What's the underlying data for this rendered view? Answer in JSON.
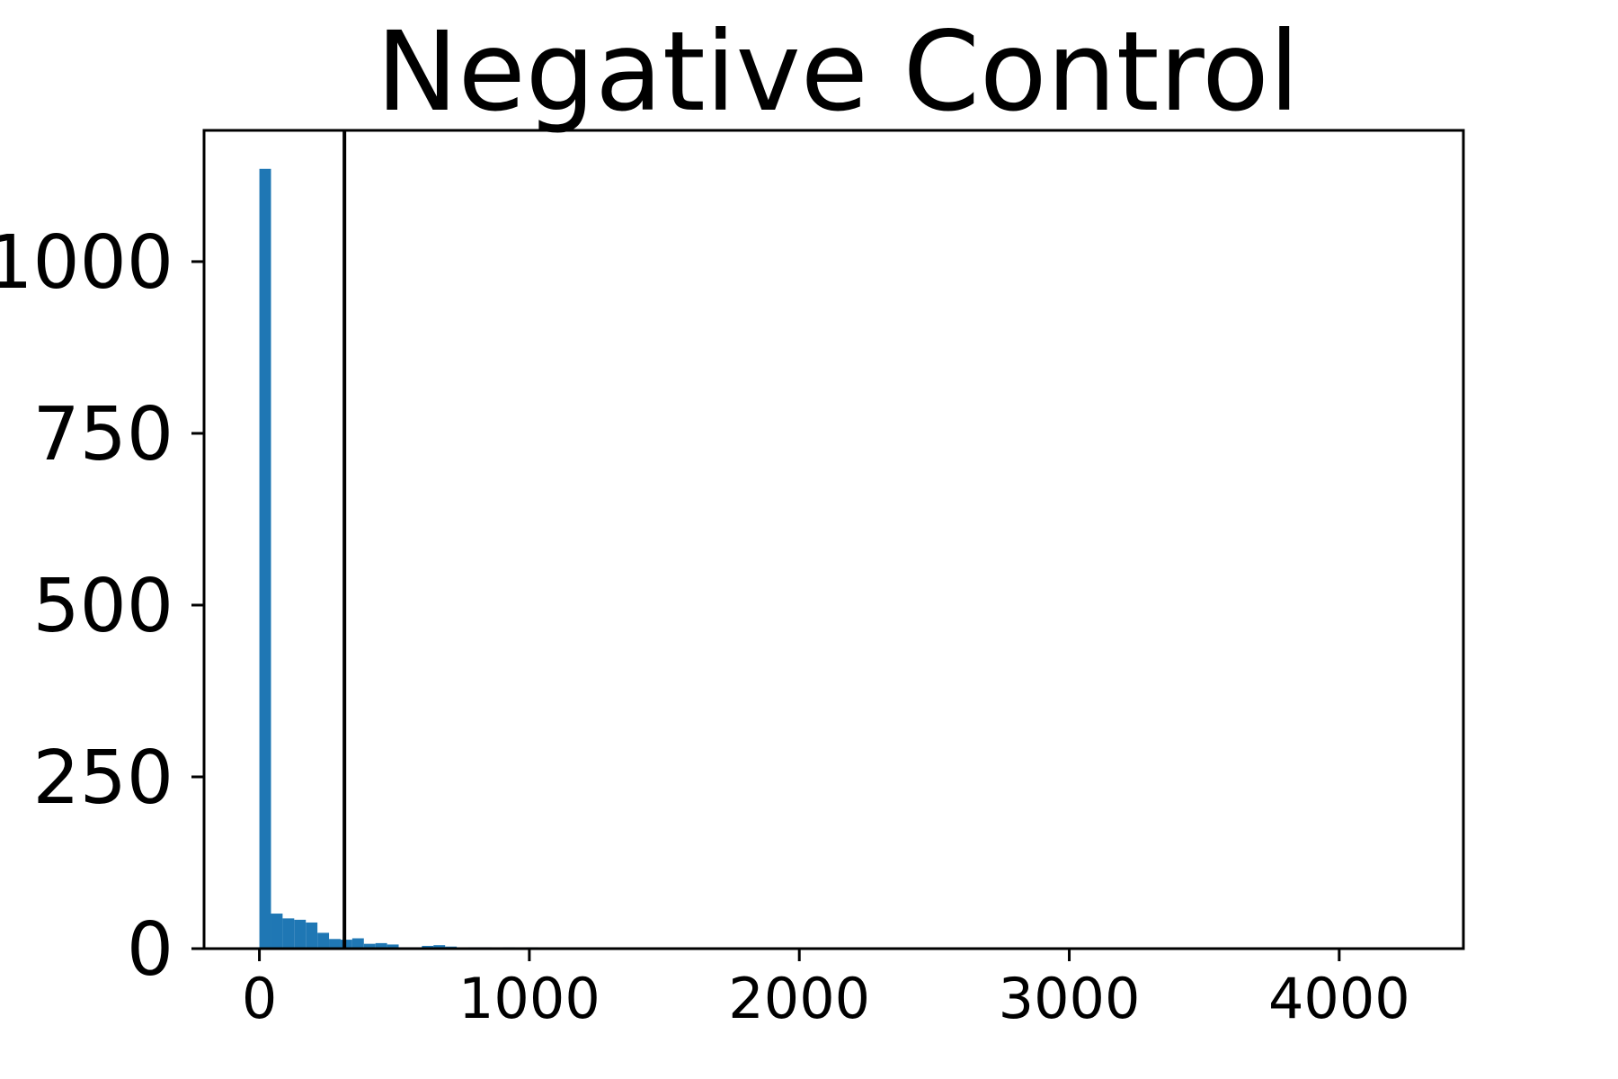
{
  "chart_data": {
    "type": "bar",
    "title": "Negative Control",
    "xlabel": "",
    "ylabel": "",
    "xlim": [
      -205,
      4460
    ],
    "ylim": [
      0,
      1191
    ],
    "xticks": [
      0,
      1000,
      2000,
      3000,
      4000
    ],
    "xtick_labels": [
      "0",
      "1000",
      "2000",
      "3000",
      "4000"
    ],
    "yticks": [
      0,
      250,
      500,
      750,
      1000
    ],
    "ytick_labels": [
      "0",
      "250",
      "500",
      "750",
      "1000"
    ],
    "bin_width": 43,
    "bins": [
      {
        "x0": 0,
        "count": 1135
      },
      {
        "x0": 43,
        "count": 51
      },
      {
        "x0": 86,
        "count": 44
      },
      {
        "x0": 129,
        "count": 42
      },
      {
        "x0": 172,
        "count": 38
      },
      {
        "x0": 215,
        "count": 23
      },
      {
        "x0": 258,
        "count": 14
      },
      {
        "x0": 301,
        "count": 13
      },
      {
        "x0": 344,
        "count": 15
      },
      {
        "x0": 387,
        "count": 7
      },
      {
        "x0": 430,
        "count": 8
      },
      {
        "x0": 473,
        "count": 6
      },
      {
        "x0": 516,
        "count": 2
      },
      {
        "x0": 559,
        "count": 2
      },
      {
        "x0": 602,
        "count": 4
      },
      {
        "x0": 645,
        "count": 5
      },
      {
        "x0": 688,
        "count": 3
      },
      {
        "x0": 731,
        "count": 1
      },
      {
        "x0": 774,
        "count": 2
      },
      {
        "x0": 817,
        "count": 2
      },
      {
        "x0": 860,
        "count": 1
      },
      {
        "x0": 903,
        "count": 2
      },
      {
        "x0": 946,
        "count": 1
      },
      {
        "x0": 989,
        "count": 2
      },
      {
        "x0": 1032,
        "count": 1
      }
    ],
    "vline_x": 315,
    "grid": false,
    "colors": {
      "bar": "#1f77b4",
      "axes": "#000000",
      "vline": "#000000"
    }
  }
}
